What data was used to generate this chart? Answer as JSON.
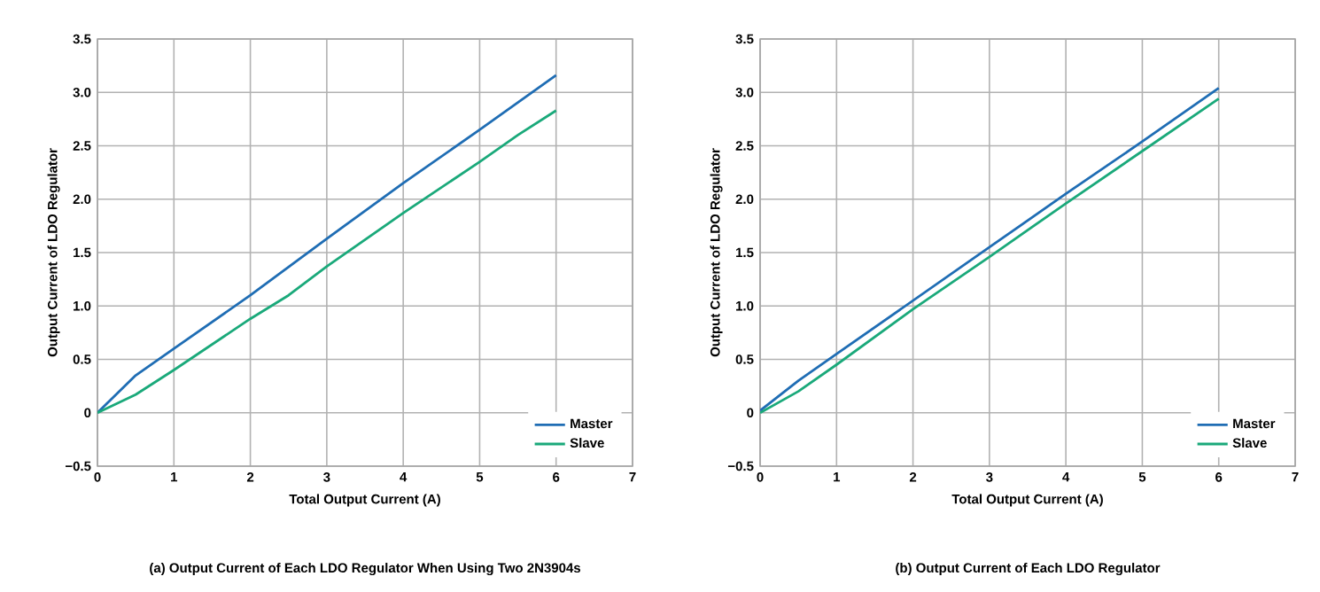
{
  "chart_data": [
    {
      "type": "line",
      "xlabel": "Total Output Current (A)",
      "ylabel": "Output Current of LDO Regulator",
      "annotations": [
        "(a) Output Current of Each LDO Regulator When Using Two 2N3904s"
      ],
      "xlim": [
        0,
        7
      ],
      "ylim": [
        -0.5,
        3.5
      ],
      "xticks": [
        0,
        1,
        2,
        3,
        4,
        5,
        6,
        7
      ],
      "yticks": [
        {
          "value": -0.5,
          "label": "−0.5"
        },
        0,
        {
          "value": 0.5,
          "label": "0.5"
        },
        {
          "value": 1,
          "label": "1.0"
        },
        {
          "value": 1.5,
          "label": "1.5"
        },
        {
          "value": 2,
          "label": "2.0"
        },
        {
          "value": 2.5,
          "label": "2.5"
        },
        {
          "value": 3,
          "label": "3.0"
        },
        {
          "value": 3.5,
          "label": "3.5"
        }
      ],
      "grid": true,
      "legend": "bottom right",
      "line_style": "solid",
      "series": [
        {
          "name": "Master",
          "color": "#1f6db4",
          "x": [
            0,
            0.5,
            1,
            2,
            3,
            4,
            5,
            6
          ],
          "values": [
            0,
            0.35,
            0.6,
            1.1,
            1.63,
            2.15,
            2.65,
            3.16
          ]
        },
        {
          "name": "Slave",
          "color": "#1aa97a",
          "x": [
            0,
            0.5,
            1,
            2,
            2.5,
            3,
            4,
            5,
            5.5,
            6
          ],
          "values": [
            0,
            0.17,
            0.4,
            0.88,
            1.1,
            1.37,
            1.87,
            2.35,
            2.6,
            2.83
          ]
        }
      ]
    },
    {
      "type": "line",
      "xlabel": "Total Output Current (A)",
      "ylabel": "Output Current of LDO Regulator",
      "annotations": [
        "(b) Output Current of Each LDO Regulator"
      ],
      "xlim": [
        0,
        7
      ],
      "ylim": [
        -0.5,
        3.5
      ],
      "xticks": [
        0,
        1,
        2,
        3,
        4,
        5,
        6,
        7
      ],
      "yticks": [
        {
          "value": -0.5,
          "label": "−0.5"
        },
        0,
        {
          "value": 0.5,
          "label": "0.5"
        },
        {
          "value": 1,
          "label": "1.0"
        },
        {
          "value": 1.5,
          "label": "1.5"
        },
        {
          "value": 2,
          "label": "2.0"
        },
        {
          "value": 2.5,
          "label": "2.5"
        },
        {
          "value": 3,
          "label": "3.0"
        },
        {
          "value": 3.5,
          "label": "3.5"
        }
      ],
      "grid": true,
      "legend": "bottom right",
      "line_style": "solid",
      "series": [
        {
          "name": "Master",
          "color": "#1f6db4",
          "x": [
            0,
            0.5,
            1,
            2,
            3,
            4,
            5,
            6
          ],
          "values": [
            0.02,
            0.3,
            0.55,
            1.05,
            1.55,
            2.05,
            2.54,
            3.04
          ]
        },
        {
          "name": "Slave",
          "color": "#1aa97a",
          "x": [
            0,
            0.5,
            1,
            2,
            3,
            4,
            5,
            6
          ],
          "values": [
            0,
            0.2,
            0.45,
            0.97,
            1.46,
            1.96,
            2.45,
            2.94
          ]
        }
      ]
    }
  ]
}
